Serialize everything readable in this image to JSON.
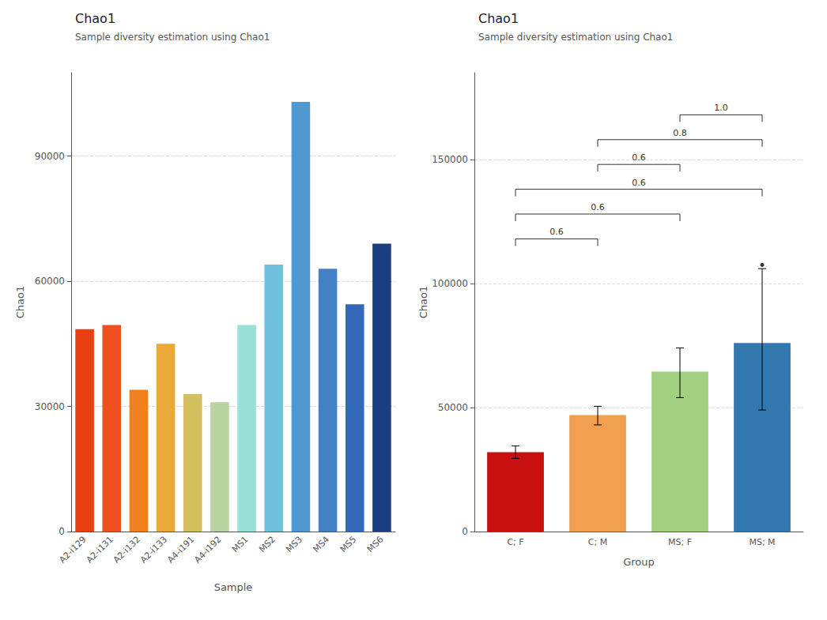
{
  "chart_data": [
    {
      "type": "bar",
      "title": "Chao1",
      "subtitle": "Sample diversity estimation using Chao1",
      "xlabel": "Sample",
      "ylabel": "Chao1",
      "categories": [
        "A2-i129",
        "A2-i131",
        "A2-i132",
        "A2-i133",
        "A4-i191",
        "A4-i192",
        "MS1",
        "MS2",
        "MS3",
        "MS4",
        "MS5",
        "MS6"
      ],
      "values": [
        48500,
        49500,
        34000,
        45000,
        33000,
        31000,
        49500,
        64000,
        103000,
        63000,
        54500,
        69000
      ],
      "colors": [
        "#E84010",
        "#F05020",
        "#F08020",
        "#EAA838",
        "#D4C060",
        "#B8D4A0",
        "#98E0D8",
        "#72C0E0",
        "#5098D0",
        "#4480C8",
        "#3468B8",
        "#1A3E80"
      ],
      "ylim": [
        0,
        110000
      ],
      "yticks": [
        0,
        30000,
        60000,
        90000
      ],
      "grid": true
    },
    {
      "type": "bar",
      "title": "Chao1",
      "subtitle": "Sample diversity estimation using Chao1",
      "xlabel": "Group",
      "ylabel": "Chao1",
      "categories": [
        "C; F",
        "C; M",
        "MS; F",
        "MS; M"
      ],
      "values": [
        32000,
        47000,
        64500,
        76000
      ],
      "errors_low": [
        2500,
        4000,
        10500,
        27000
      ],
      "errors_high": [
        2500,
        3500,
        9500,
        30000
      ],
      "colors": [
        "#C81010",
        "#F0A050",
        "#A0D080",
        "#3478B0"
      ],
      "outliers": [
        {
          "category": "MS; M",
          "value": 107500
        }
      ],
      "brackets": [
        {
          "from": "C; F",
          "to": "C; M",
          "y": 118000,
          "label": "0.6"
        },
        {
          "from": "C; F",
          "to": "MS; F",
          "y": 128000,
          "label": "0.6"
        },
        {
          "from": "C; F",
          "to": "MS; M",
          "y": 138000,
          "label": "0.6"
        },
        {
          "from": "C; M",
          "to": "MS; F",
          "y": 148000,
          "label": "0.6"
        },
        {
          "from": "C; M",
          "to": "MS; M",
          "y": 158000,
          "label": "0.8"
        },
        {
          "from": "MS; F",
          "to": "MS; M",
          "y": 168000,
          "label": "1.0"
        }
      ],
      "ylim": [
        0,
        185000
      ],
      "yticks": [
        0,
        50000,
        100000,
        150000
      ],
      "grid": true
    }
  ]
}
